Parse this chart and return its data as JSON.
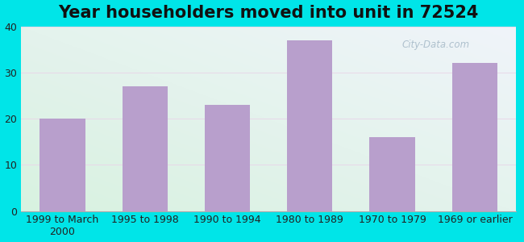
{
  "title": "Year householders moved into unit in 72524",
  "categories": [
    "1999 to March\n2000",
    "1995 to 1998",
    "1990 to 1994",
    "1980 to 1989",
    "1970 to 1979",
    "1969 or earlier"
  ],
  "values": [
    20,
    27,
    23,
    37,
    16,
    32
  ],
  "bar_color": "#b89fcc",
  "background_outer": "#00e5e8",
  "ylim": [
    0,
    40
  ],
  "yticks": [
    0,
    10,
    20,
    30,
    40
  ],
  "title_fontsize": 15,
  "tick_fontsize": 9,
  "watermark": "City-Data.com",
  "fig_width": 6.5,
  "fig_height": 3.0,
  "dpi": 100
}
